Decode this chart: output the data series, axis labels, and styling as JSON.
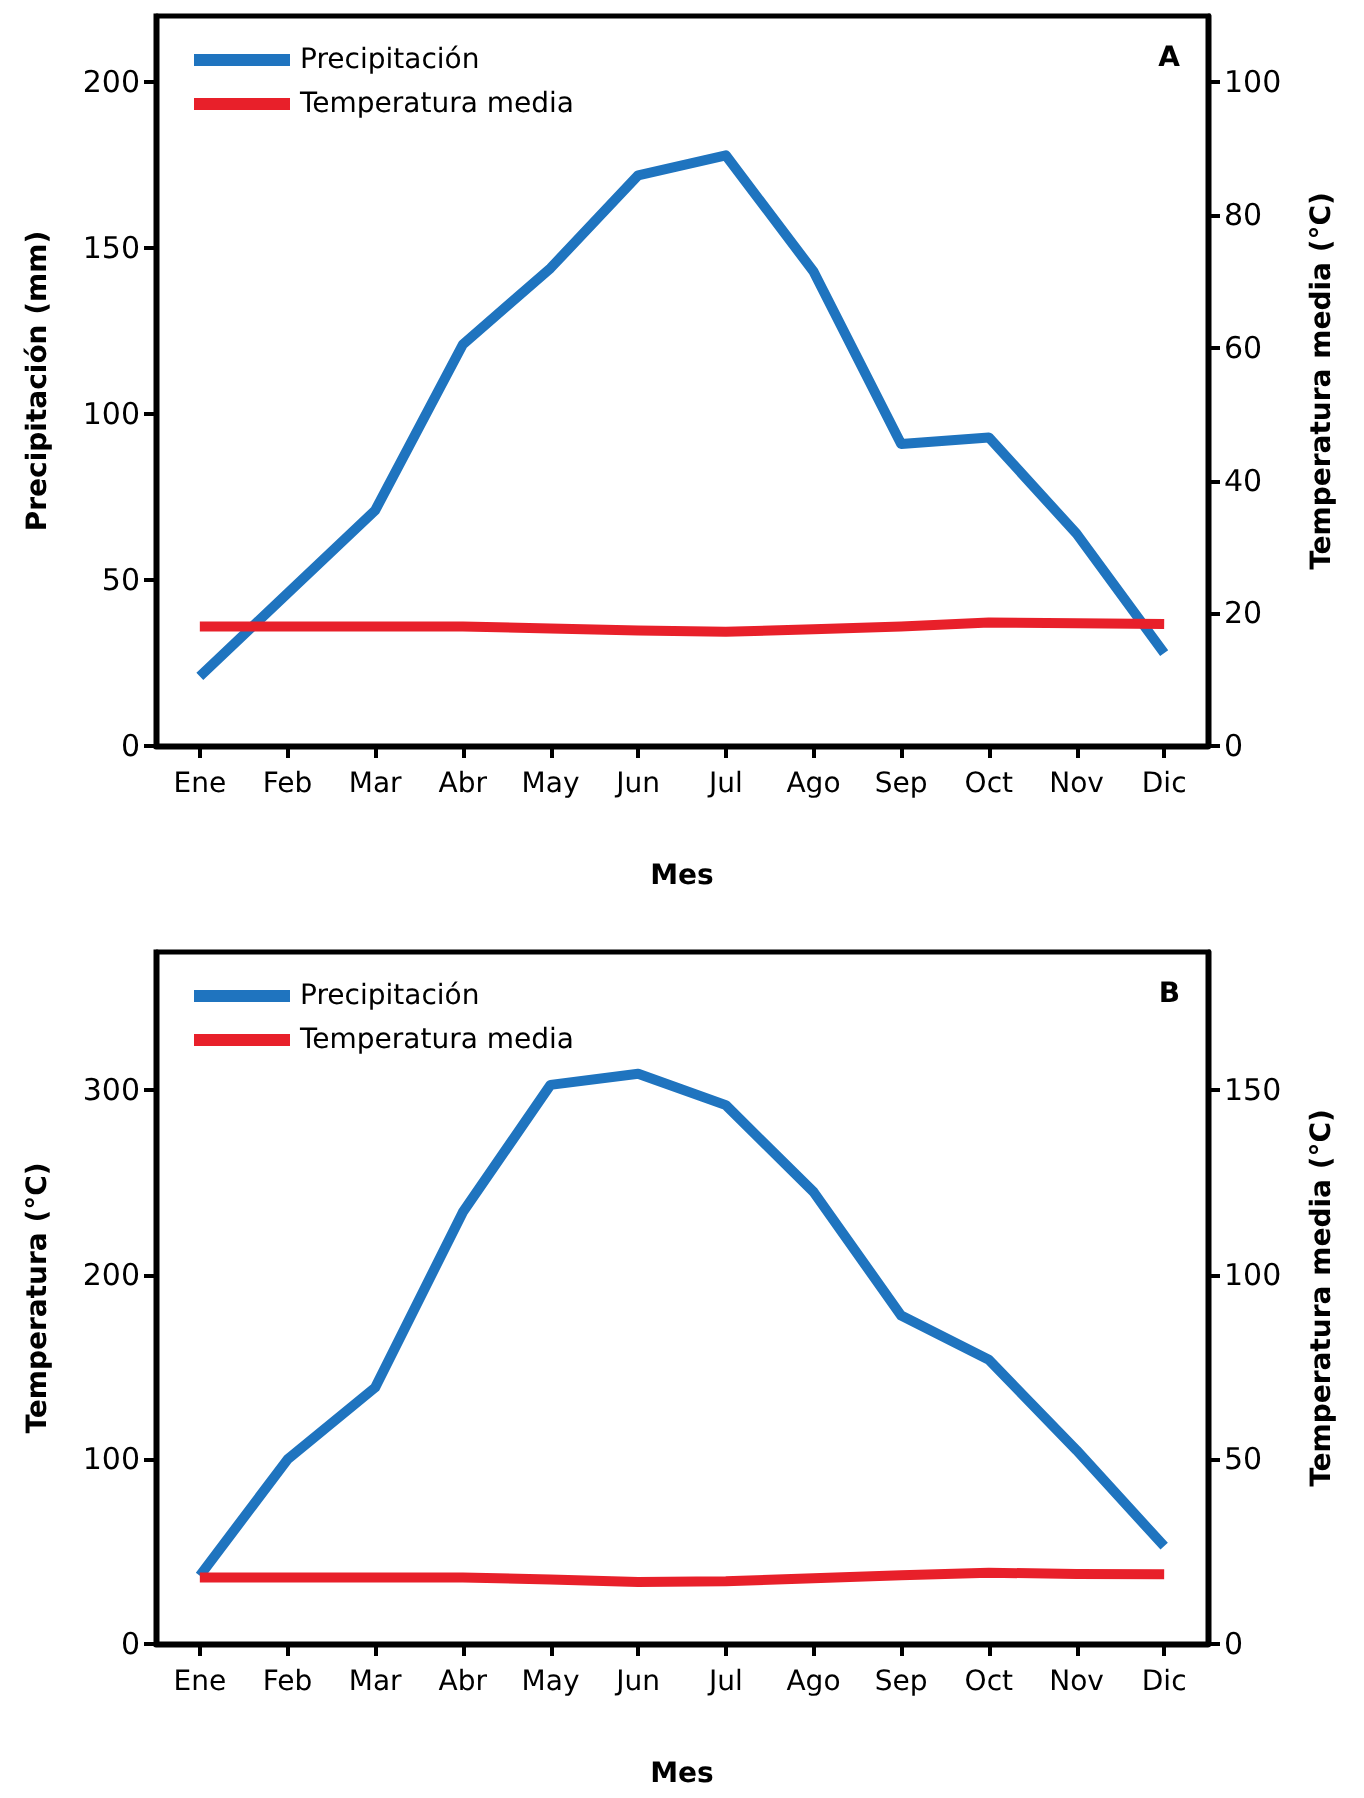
{
  "chart_data": [
    {
      "type": "line",
      "xlabel": "Mes",
      "ylabel": "Precipitación (mm)",
      "y2label": "Temperatura media (°C)",
      "annotations": [
        "A"
      ],
      "categories": [
        "Ene",
        "Feb",
        "Mar",
        "Abr",
        "May",
        "Jun",
        "Jul",
        "Ago",
        "Sep",
        "Oct",
        "Nov",
        "Dic"
      ],
      "series": [
        {
          "name": "Precipitación",
          "color": "#1f74bf",
          "values": [
            21,
            46,
            71,
            121,
            144,
            172,
            178,
            143,
            91,
            93,
            64,
            28
          ]
        },
        {
          "name": "Temperatura media",
          "color": "#e8202a",
          "axis": "y2",
          "values": [
            18,
            18,
            18,
            18,
            17.7,
            17.4,
            17.2,
            17.6,
            18,
            18.6,
            18.5,
            18.4
          ]
        }
      ],
      "ylim": [
        0,
        220
      ],
      "yticks": [
        0,
        50,
        100,
        150,
        200
      ],
      "y2lim": [
        0,
        110
      ],
      "y2ticks": [
        0,
        20,
        40,
        60,
        80,
        100
      ],
      "legend": "top left",
      "marker": "none",
      "line_style": "solid"
    },
    {
      "type": "line",
      "xlabel": "Mes",
      "ylabel": "Temperatura (°C)",
      "y2label": "Temperatura media (°C)",
      "annotations": [
        "B"
      ],
      "categories": [
        "Ene",
        "Feb",
        "Mar",
        "Abr",
        "May",
        "Jun",
        "Jul",
        "Ago",
        "Sep",
        "Oct",
        "Nov",
        "Dic"
      ],
      "series": [
        {
          "name": "Precipitación",
          "color": "#1f74bf",
          "values": [
            37,
            100,
            139,
            234,
            303,
            309,
            292,
            245,
            178,
            154,
            105,
            53
          ]
        },
        {
          "name": "Temperatura media",
          "color": "#e8202a",
          "axis": "y2",
          "values": [
            18,
            18,
            18,
            18,
            17.5,
            16.8,
            17,
            17.8,
            18.6,
            19.3,
            19,
            18.9
          ]
        }
      ],
      "ylim": [
        0,
        375
      ],
      "yticks": [
        0,
        100,
        200,
        300
      ],
      "y2lim": [
        0,
        187.5
      ],
      "y2ticks": [
        0,
        50,
        100,
        150
      ],
      "legend": "top left",
      "marker": "none",
      "line_style": "solid"
    }
  ]
}
